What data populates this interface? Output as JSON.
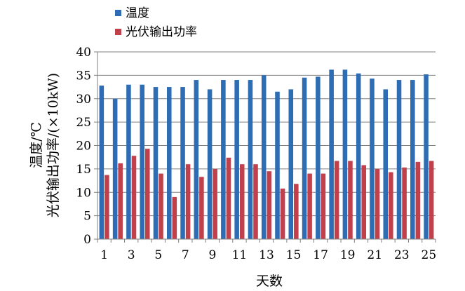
{
  "chart_data": {
    "type": "bar",
    "title": "",
    "xlabel": "天数",
    "ylabel_lines": [
      "温度/℃",
      "光伏输出功率/(×10kW)"
    ],
    "categories": [
      1,
      2,
      3,
      4,
      5,
      6,
      7,
      8,
      9,
      10,
      11,
      12,
      13,
      14,
      15,
      16,
      17,
      18,
      19,
      20,
      21,
      22,
      23,
      24,
      25
    ],
    "x_tick_labels": [
      "1",
      "3",
      "5",
      "7",
      "9",
      "11",
      "13",
      "15",
      "17",
      "19",
      "21",
      "23",
      "25"
    ],
    "y_tick_labels": [
      "0",
      "5",
      "10",
      "15",
      "20",
      "25",
      "30",
      "35",
      "40"
    ],
    "ylim": [
      0,
      40
    ],
    "y_ticks": [
      0,
      5,
      10,
      15,
      20,
      25,
      30,
      35,
      40
    ],
    "grid": true,
    "legend_position": "top-left",
    "series": [
      {
        "name": "温度",
        "color": "#2e6db4",
        "values": [
          32.8,
          30.0,
          33.0,
          33.0,
          32.5,
          32.5,
          32.5,
          34.0,
          32.0,
          34.0,
          34.0,
          34.0,
          35.0,
          31.5,
          32.0,
          34.5,
          34.7,
          36.2,
          36.2,
          35.4,
          34.3,
          32.0,
          34.0,
          34.0,
          35.2
        ]
      },
      {
        "name": "光伏输出功率",
        "color": "#c0414b",
        "values": [
          13.7,
          16.2,
          17.8,
          19.3,
          14.0,
          9.0,
          16.0,
          13.3,
          15.0,
          17.4,
          16.0,
          16.0,
          14.5,
          10.8,
          11.8,
          14.0,
          14.0,
          16.7,
          16.7,
          15.8,
          15.0,
          14.3,
          15.3,
          16.5,
          16.7
        ]
      }
    ]
  }
}
